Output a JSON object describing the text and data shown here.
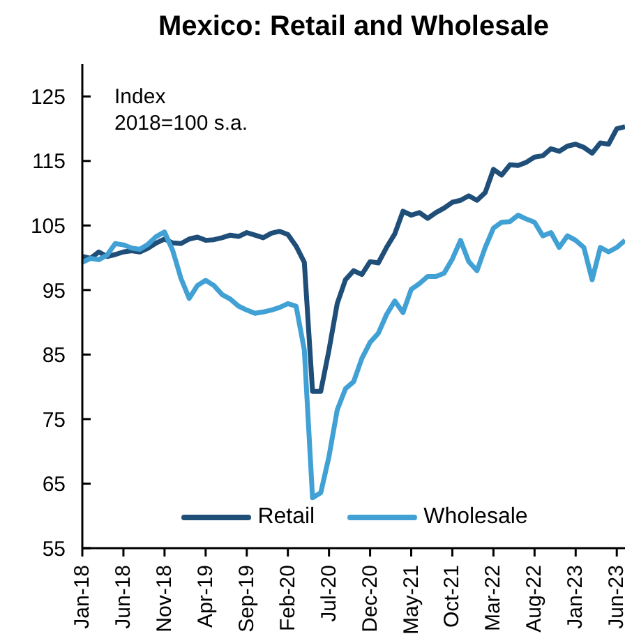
{
  "chart_data": {
    "type": "line",
    "title": "Mexico: Retail and Wholesale",
    "annotations": [
      "Index",
      "2018=100 s.a."
    ],
    "x": [
      "2018-01",
      "2018-02",
      "2018-03",
      "2018-04",
      "2018-05",
      "2018-06",
      "2018-07",
      "2018-08",
      "2018-09",
      "2018-10",
      "2018-11",
      "2018-12",
      "2019-01",
      "2019-02",
      "2019-03",
      "2019-04",
      "2019-05",
      "2019-06",
      "2019-07",
      "2019-08",
      "2019-09",
      "2019-10",
      "2019-11",
      "2019-12",
      "2020-01",
      "2020-02",
      "2020-03",
      "2020-04",
      "2020-05",
      "2020-06",
      "2020-07",
      "2020-08",
      "2020-09",
      "2020-10",
      "2020-11",
      "2020-12",
      "2021-01",
      "2021-02",
      "2021-03",
      "2021-04",
      "2021-05",
      "2021-06",
      "2021-07",
      "2021-08",
      "2021-09",
      "2021-10",
      "2021-11",
      "2021-12",
      "2022-01",
      "2022-02",
      "2022-03",
      "2022-04",
      "2022-05",
      "2022-06",
      "2022-07",
      "2022-08",
      "2022-09",
      "2022-10",
      "2022-11",
      "2022-12",
      "2023-01",
      "2023-02",
      "2023-03",
      "2023-04",
      "2023-05",
      "2023-06",
      "2023-07"
    ],
    "series": [
      {
        "name": "Retail",
        "color": "#1f4e79",
        "values": [
          100.2,
          99.9,
          100.9,
          100.2,
          100.5,
          100.9,
          101.1,
          100.9,
          101.5,
          102.3,
          102.9,
          102.3,
          102.2,
          102.9,
          103.2,
          102.7,
          102.8,
          103.1,
          103.5,
          103.3,
          103.9,
          103.5,
          103.1,
          103.8,
          104.1,
          103.6,
          101.8,
          99.3,
          79.3,
          79.3,
          85.7,
          92.9,
          96.6,
          98.0,
          97.4,
          99.4,
          99.2,
          101.6,
          103.7,
          107.2,
          106.6,
          107.0,
          106.1,
          107.0,
          107.7,
          108.6,
          108.9,
          109.6,
          108.9,
          110.1,
          113.7,
          112.8,
          114.4,
          114.3,
          114.8,
          115.6,
          115.8,
          116.9,
          116.5,
          117.3,
          117.6,
          117.1,
          116.2,
          117.8,
          117.6,
          120.0,
          120.3
        ]
      },
      {
        "name": "Wholesale",
        "color": "#41a0d4",
        "values": [
          99.3,
          99.9,
          99.7,
          100.4,
          102.2,
          102.0,
          101.5,
          101.3,
          102.1,
          103.3,
          104.0,
          101.1,
          96.8,
          93.7,
          95.7,
          96.5,
          95.7,
          94.3,
          93.6,
          92.5,
          91.9,
          91.4,
          91.6,
          91.9,
          92.3,
          92.9,
          92.5,
          85.7,
          62.8,
          63.6,
          69.2,
          76.4,
          79.7,
          80.8,
          84.4,
          86.9,
          88.3,
          91.2,
          93.3,
          91.5,
          95.1,
          96.0,
          97.1,
          97.1,
          97.6,
          99.8,
          102.7,
          99.4,
          98.0,
          101.6,
          104.6,
          105.5,
          105.6,
          106.6,
          106.0,
          105.5,
          103.4,
          103.9,
          101.6,
          103.4,
          102.7,
          101.6,
          96.6,
          101.6,
          100.9,
          101.6,
          102.7
        ]
      }
    ],
    "xlim": [
      "2018-01",
      "2023-07"
    ],
    "xticks": [
      {
        "value": "2018-01",
        "label": "Jan-18"
      },
      {
        "value": "2018-06",
        "label": "Jun-18"
      },
      {
        "value": "2018-11",
        "label": "Nov-18"
      },
      {
        "value": "2019-04",
        "label": "Apr-19"
      },
      {
        "value": "2019-09",
        "label": "Sep-19"
      },
      {
        "value": "2020-02",
        "label": "Feb-20"
      },
      {
        "value": "2020-07",
        "label": "Jul-20"
      },
      {
        "value": "2020-12",
        "label": "Dec-20"
      },
      {
        "value": "2021-05",
        "label": "May-21"
      },
      {
        "value": "2021-10",
        "label": "Oct-21"
      },
      {
        "value": "2022-03",
        "label": "Mar-22"
      },
      {
        "value": "2022-08",
        "label": "Aug-22"
      },
      {
        "value": "2023-01",
        "label": "Jan-23"
      },
      {
        "value": "2023-06",
        "label": "Jun-23"
      }
    ],
    "ylim": [
      55,
      130
    ],
    "yticks": [
      55,
      65,
      75,
      85,
      95,
      105,
      115,
      125
    ],
    "grid": false,
    "legend": "bottom",
    "marker": "none",
    "line_style": "solid"
  }
}
